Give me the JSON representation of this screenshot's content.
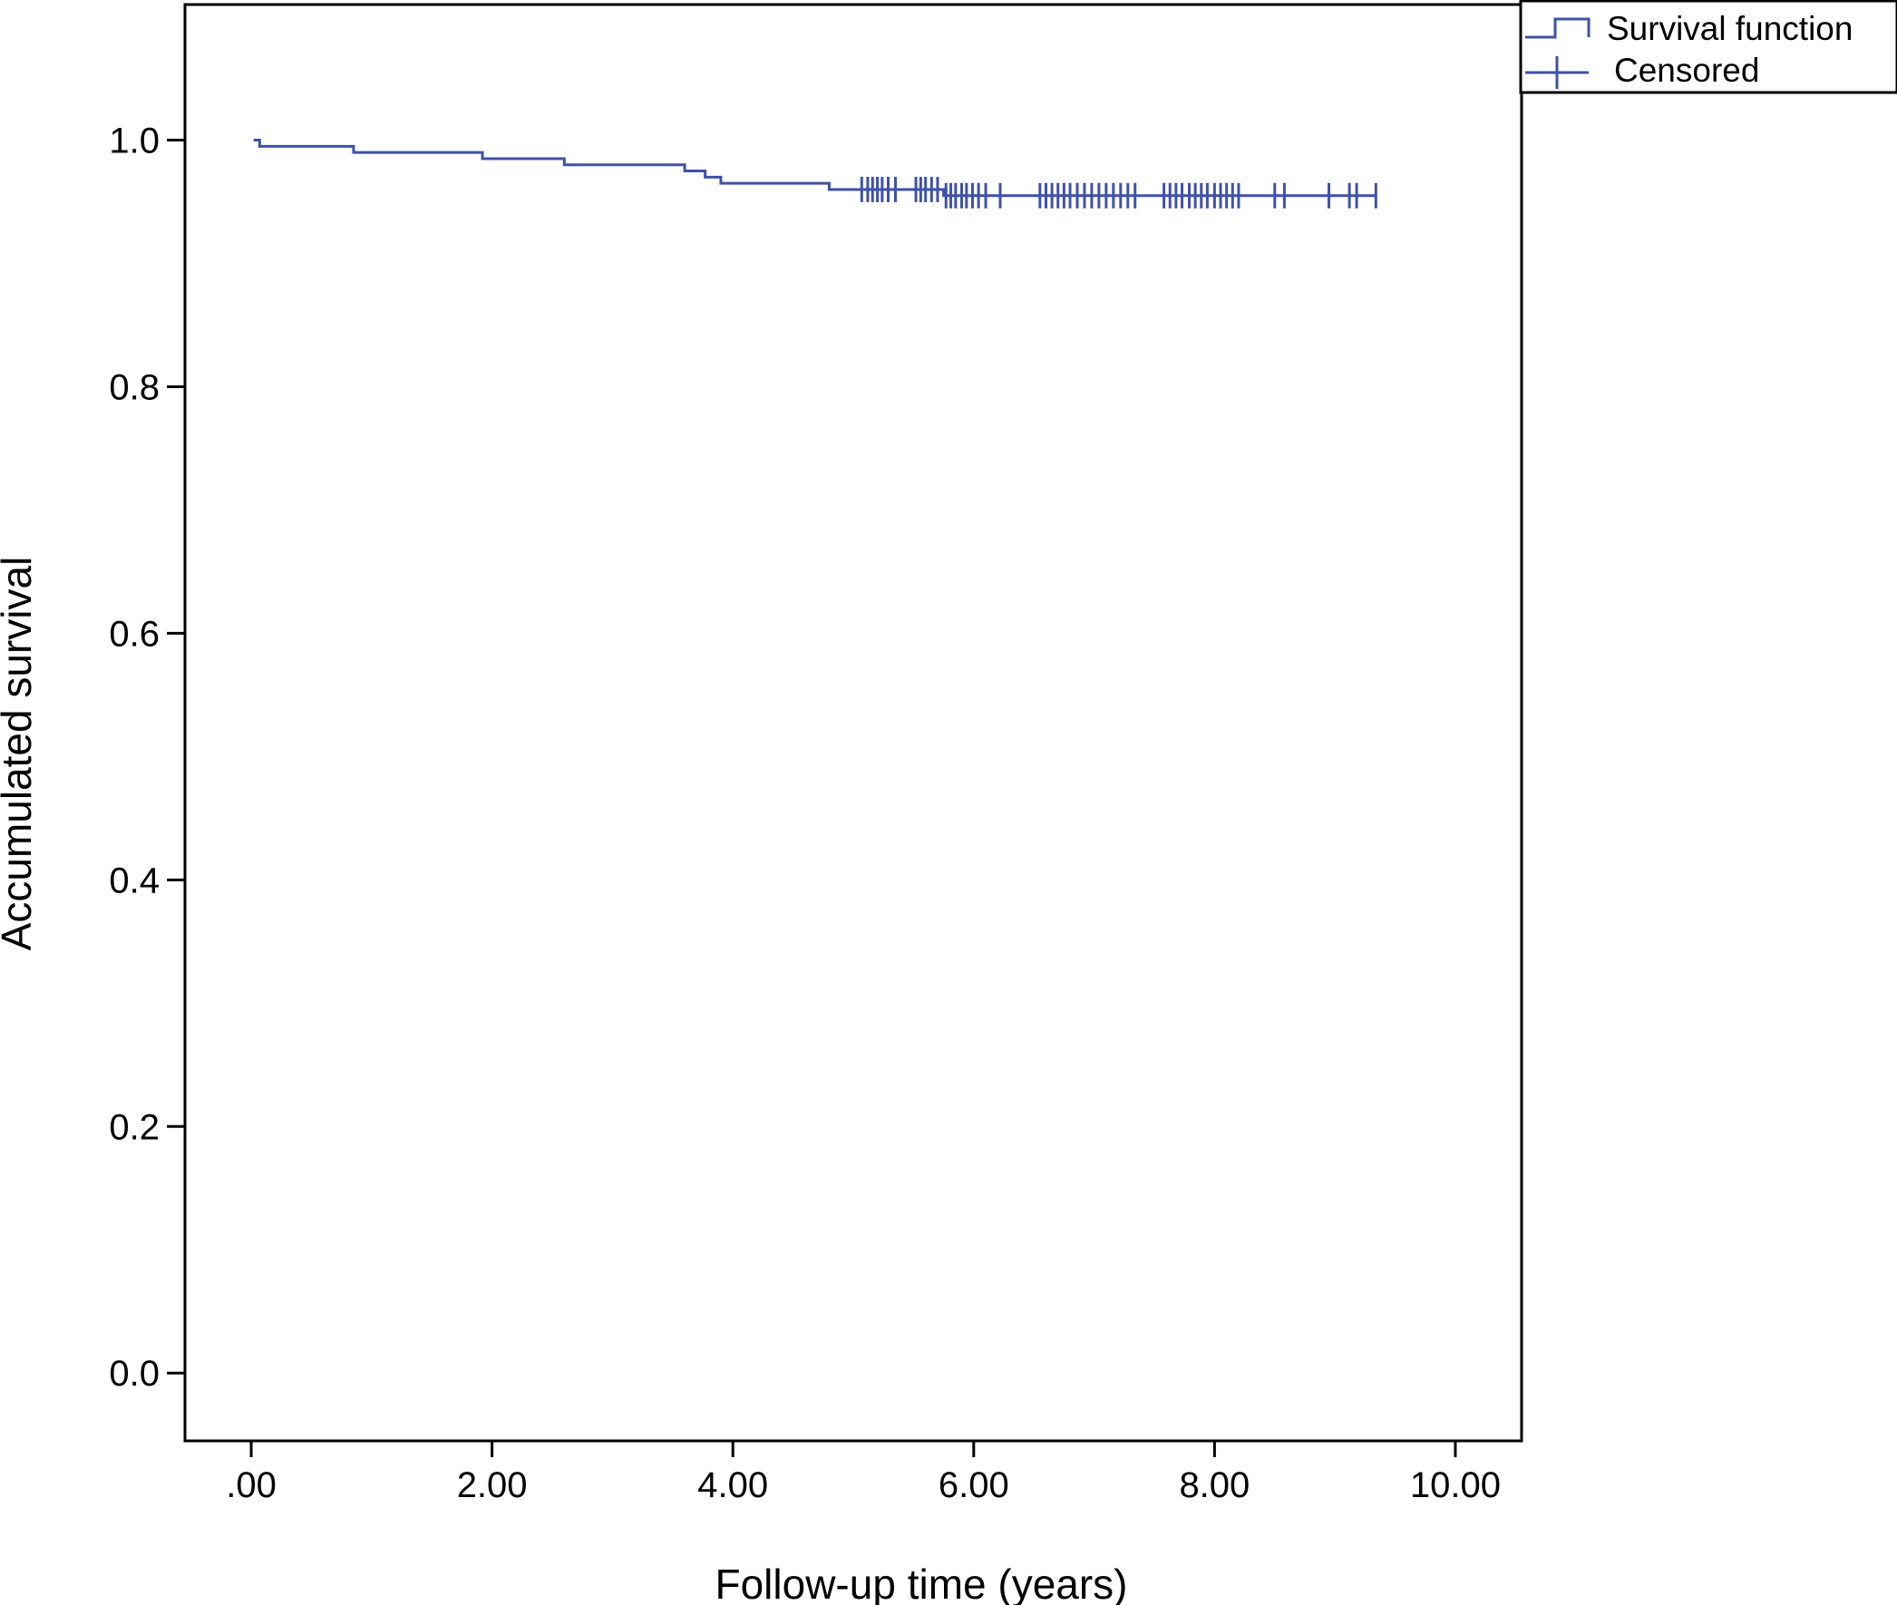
{
  "chart_data": {
    "type": "line",
    "title": "",
    "xlabel": "Follow-up time (years)",
    "ylabel": "Accumulated survival",
    "xlim": [
      -0.55,
      10.55
    ],
    "ylim": [
      -0.055,
      1.11
    ],
    "x_ticks": [
      {
        "value": 0,
        "label": ".00"
      },
      {
        "value": 2,
        "label": "2.00"
      },
      {
        "value": 4,
        "label": "4.00"
      },
      {
        "value": 6,
        "label": "6.00"
      },
      {
        "value": 8,
        "label": "8.00"
      },
      {
        "value": 10,
        "label": "10.00"
      }
    ],
    "y_ticks": [
      {
        "value": 0.0,
        "label": "0.0"
      },
      {
        "value": 0.2,
        "label": "0.2"
      },
      {
        "value": 0.4,
        "label": "0.4"
      },
      {
        "value": 0.6,
        "label": "0.6"
      },
      {
        "value": 0.8,
        "label": "0.8"
      },
      {
        "value": 1.0,
        "label": "1.0"
      }
    ],
    "grid": false,
    "legend": {
      "position": "top-right",
      "entries": [
        {
          "label": "Survival function",
          "symbol": "step"
        },
        {
          "label": "Censored",
          "symbol": "cross"
        }
      ]
    },
    "line_color": "#3f51a9",
    "series": [
      {
        "name": "Survival function",
        "steps": [
          [
            0.02,
            1.0
          ],
          [
            0.07,
            0.995
          ],
          [
            0.85,
            0.99
          ],
          [
            1.92,
            0.985
          ],
          [
            2.6,
            0.98
          ],
          [
            3.6,
            0.975
          ],
          [
            3.77,
            0.97
          ],
          [
            3.9,
            0.965
          ],
          [
            4.8,
            0.96
          ],
          [
            5.75,
            0.955
          ],
          [
            9.35,
            0.955
          ]
        ]
      },
      {
        "name": "Censored",
        "points": [
          [
            5.07,
            0.96
          ],
          [
            5.12,
            0.96
          ],
          [
            5.16,
            0.96
          ],
          [
            5.2,
            0.96
          ],
          [
            5.24,
            0.96
          ],
          [
            5.29,
            0.96
          ],
          [
            5.35,
            0.96
          ],
          [
            5.52,
            0.96
          ],
          [
            5.56,
            0.96
          ],
          [
            5.6,
            0.96
          ],
          [
            5.65,
            0.96
          ],
          [
            5.7,
            0.96
          ],
          [
            5.77,
            0.955
          ],
          [
            5.81,
            0.955
          ],
          [
            5.85,
            0.955
          ],
          [
            5.9,
            0.955
          ],
          [
            5.94,
            0.955
          ],
          [
            5.99,
            0.955
          ],
          [
            6.04,
            0.955
          ],
          [
            6.1,
            0.955
          ],
          [
            6.22,
            0.955
          ],
          [
            6.55,
            0.955
          ],
          [
            6.6,
            0.955
          ],
          [
            6.65,
            0.955
          ],
          [
            6.7,
            0.955
          ],
          [
            6.75,
            0.955
          ],
          [
            6.8,
            0.955
          ],
          [
            6.86,
            0.955
          ],
          [
            6.92,
            0.955
          ],
          [
            6.98,
            0.955
          ],
          [
            7.04,
            0.955
          ],
          [
            7.1,
            0.955
          ],
          [
            7.16,
            0.955
          ],
          [
            7.22,
            0.955
          ],
          [
            7.28,
            0.955
          ],
          [
            7.34,
            0.955
          ],
          [
            7.58,
            0.955
          ],
          [
            7.63,
            0.955
          ],
          [
            7.68,
            0.955
          ],
          [
            7.73,
            0.955
          ],
          [
            7.79,
            0.955
          ],
          [
            7.84,
            0.955
          ],
          [
            7.89,
            0.955
          ],
          [
            7.94,
            0.955
          ],
          [
            8.0,
            0.955
          ],
          [
            8.05,
            0.955
          ],
          [
            8.1,
            0.955
          ],
          [
            8.15,
            0.955
          ],
          [
            8.2,
            0.955
          ],
          [
            8.5,
            0.955
          ],
          [
            8.58,
            0.955
          ],
          [
            8.95,
            0.955
          ],
          [
            9.12,
            0.955
          ],
          [
            9.18,
            0.955
          ],
          [
            9.34,
            0.955
          ]
        ]
      }
    ]
  }
}
